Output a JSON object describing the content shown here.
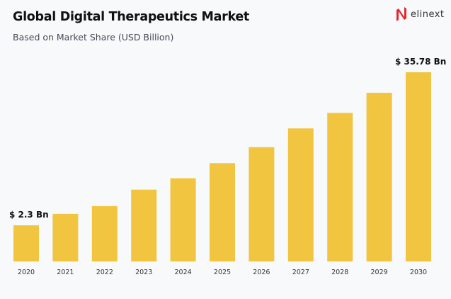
{
  "header": {
    "title": "Global Digital Therapeutics Market",
    "subtitle": "Based on Market Share (USD Billion)"
  },
  "logo": {
    "text": "elinext",
    "accent": "#e5252f"
  },
  "chart_data": {
    "type": "bar",
    "title": "Global Digital Therapeutics Market",
    "subtitle": "Based on Market Share (USD Billion)",
    "categories": [
      "2020",
      "2021",
      "2022",
      "2023",
      "2024",
      "2025",
      "2026",
      "2027",
      "2028",
      "2029",
      "2030"
    ],
    "values": [
      2.3,
      4.8,
      6.5,
      10.1,
      12.6,
      15.9,
      19.4,
      23.5,
      26.9,
      31.3,
      35.78
    ],
    "data_labels": [
      {
        "category": "2020",
        "text": "$ 2.3 Bn"
      },
      {
        "category": "2030",
        "text": "$ 35.78 Bn"
      }
    ],
    "xlabel": "",
    "ylabel": "",
    "grid": false,
    "bar_color": "#f2c541"
  }
}
